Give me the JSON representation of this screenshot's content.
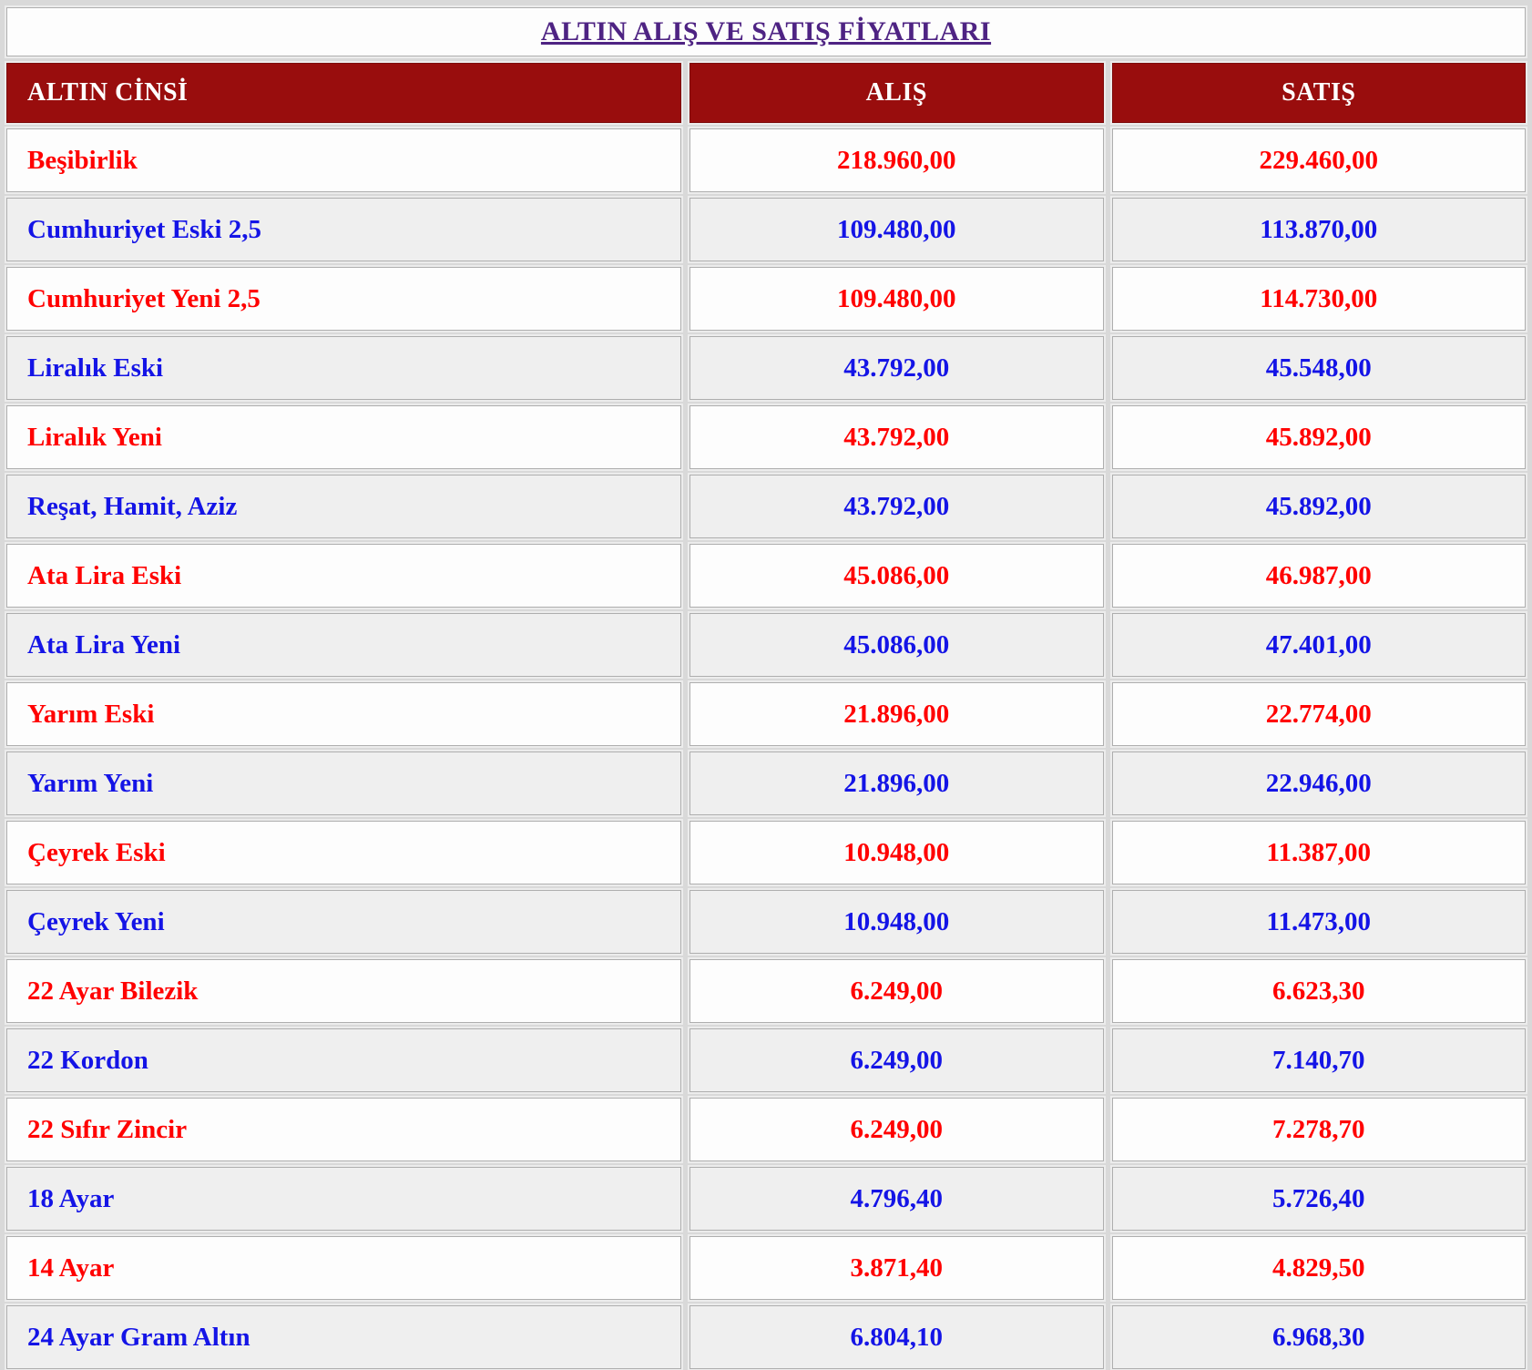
{
  "page": {
    "title": "ALTIN ALIŞ VE SATIŞ FİYATLARI"
  },
  "table": {
    "headers": {
      "type": "ALTIN CİNSİ",
      "buy": "ALIŞ",
      "sell": "SATIŞ"
    },
    "rows": [
      {
        "name": "Beşibirlik",
        "buy": "218.960,00",
        "sell": "229.460,00",
        "tone": "red"
      },
      {
        "name": "Cumhuriyet Eski 2,5",
        "buy": "109.480,00",
        "sell": "113.870,00",
        "tone": "blue"
      },
      {
        "name": "Cumhuriyet Yeni 2,5",
        "buy": "109.480,00",
        "sell": "114.730,00",
        "tone": "red"
      },
      {
        "name": "Liralık Eski",
        "buy": "43.792,00",
        "sell": "45.548,00",
        "tone": "blue"
      },
      {
        "name": "Liralık Yeni",
        "buy": "43.792,00",
        "sell": "45.892,00",
        "tone": "red"
      },
      {
        "name": "Reşat, Hamit, Aziz",
        "buy": "43.792,00",
        "sell": "45.892,00",
        "tone": "blue"
      },
      {
        "name": "Ata Lira Eski",
        "buy": "45.086,00",
        "sell": "46.987,00",
        "tone": "red"
      },
      {
        "name": "Ata Lira Yeni",
        "buy": "45.086,00",
        "sell": "47.401,00",
        "tone": "blue"
      },
      {
        "name": "Yarım Eski",
        "buy": "21.896,00",
        "sell": "22.774,00",
        "tone": "red"
      },
      {
        "name": "Yarım Yeni",
        "buy": "21.896,00",
        "sell": "22.946,00",
        "tone": "blue"
      },
      {
        "name": "Çeyrek Eski",
        "buy": "10.948,00",
        "sell": "11.387,00",
        "tone": "red"
      },
      {
        "name": "Çeyrek Yeni",
        "buy": "10.948,00",
        "sell": "11.473,00",
        "tone": "blue"
      },
      {
        "name": "22 Ayar Bilezik",
        "buy": "6.249,00",
        "sell": "6.623,30",
        "tone": "red"
      },
      {
        "name": "22 Kordon",
        "buy": "6.249,00",
        "sell": "7.140,70",
        "tone": "blue"
      },
      {
        "name": "22 Sıfır Zincir",
        "buy": "6.249,00",
        "sell": "7.278,70",
        "tone": "red"
      },
      {
        "name": "18 Ayar",
        "buy": "4.796,40",
        "sell": "5.726,40",
        "tone": "blue"
      },
      {
        "name": "14 Ayar",
        "buy": "3.871,40",
        "sell": "4.829,50",
        "tone": "red"
      },
      {
        "name": "24 Ayar Gram Altın",
        "buy": "6.804,10",
        "sell": "6.968,30",
        "tone": "blue"
      }
    ]
  },
  "colors": {
    "header_bg": "#990d0d",
    "header_text": "#ffffff",
    "title_color": "#4e2383",
    "red_text": "#ff0000",
    "blue_text": "#1414e6",
    "white_row_bg": "#fdfdfd",
    "gray_row_bg": "#efefef",
    "page_bg": "#d9d9d9"
  }
}
